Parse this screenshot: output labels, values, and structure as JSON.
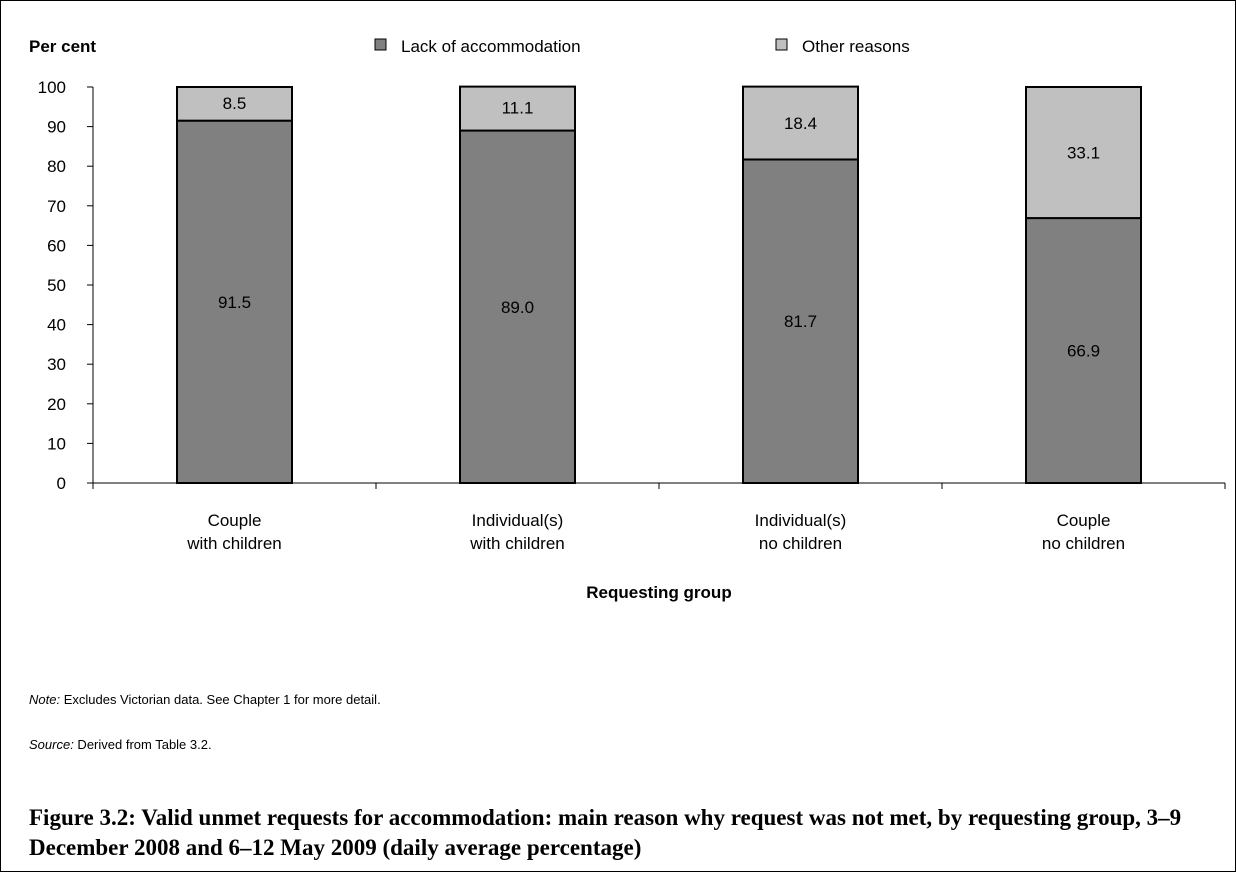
{
  "chart_data": {
    "type": "bar",
    "stacked": true,
    "ylabel": "Per cent",
    "xlabel": "Requesting group",
    "ylim": [
      0,
      100
    ],
    "yticks": [
      0,
      10,
      20,
      30,
      40,
      50,
      60,
      70,
      80,
      90,
      100
    ],
    "legend_position": "top",
    "categories": [
      [
        "Couple",
        "with children"
      ],
      [
        "Individual(s)",
        "with children"
      ],
      [
        "Individual(s)",
        "no children"
      ],
      [
        "Couple",
        "no children"
      ]
    ],
    "series": [
      {
        "name": "Lack of accommodation",
        "color": "#808080",
        "values": [
          91.5,
          89.0,
          81.7,
          66.9
        ],
        "labels": [
          "91.5",
          "89.0",
          "81.7",
          "66.9"
        ]
      },
      {
        "name": "Other reasons",
        "color": "#c0c0c0",
        "values": [
          8.5,
          11.1,
          18.4,
          33.1
        ],
        "labels": [
          "8.5",
          "11.1",
          "18.4",
          "33.1"
        ]
      }
    ]
  },
  "notes": {
    "note_label": "Note:",
    "note_text": " Excludes Victorian data. See Chapter 1 for more detail.",
    "source_label": "Source:",
    "source_text": " Derived from Table 3.2."
  },
  "caption": "Figure 3.2: Valid unmet requests for accommodation: main reason why request was not met, by requesting group, 3–9 December 2008 and 6–12 May 2009 (daily average percentage)"
}
